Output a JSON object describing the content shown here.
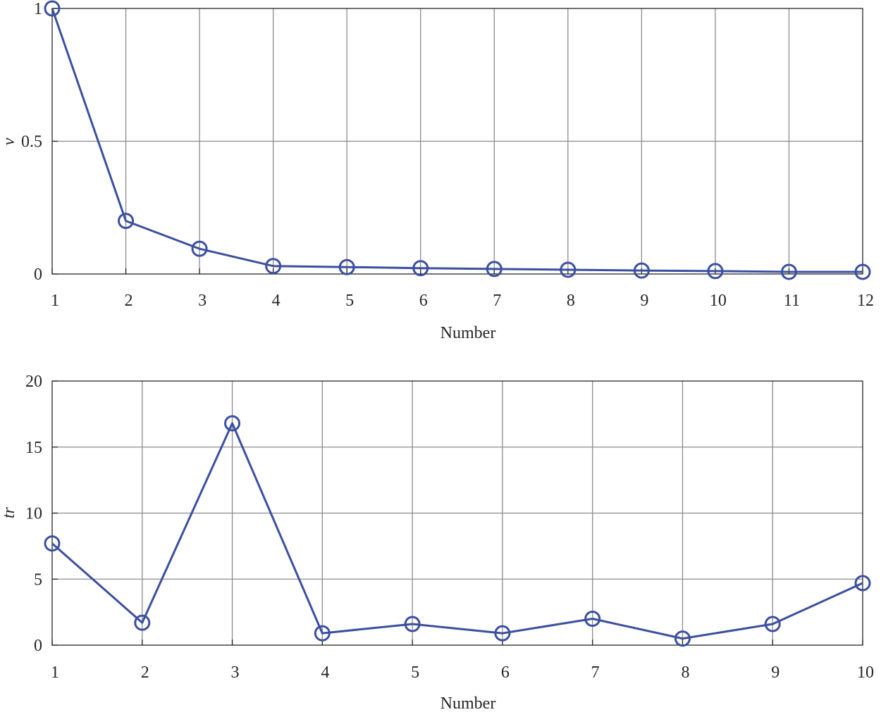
{
  "chart_data": [
    {
      "type": "line",
      "xlabel": "Number",
      "ylabel": "v",
      "x": [
        1,
        2,
        3,
        4,
        5,
        6,
        7,
        8,
        9,
        10,
        11,
        12
      ],
      "xticks": [
        "1",
        "2",
        "3",
        "4",
        "5",
        "6",
        "7",
        "8",
        "9",
        "10",
        "11",
        "12"
      ],
      "xlim": [
        1,
        12
      ],
      "ylim": [
        0,
        1
      ],
      "yticks": [
        "0",
        "0.5",
        "1"
      ],
      "ytick_values": [
        0,
        0.5,
        1
      ],
      "grid": true,
      "marker": "circle",
      "color": "#3b4fa0",
      "series": [
        {
          "values": [
            1.0,
            0.2,
            0.095,
            0.03,
            0.026,
            0.022,
            0.019,
            0.016,
            0.013,
            0.011,
            0.008,
            0.008
          ]
        }
      ]
    },
    {
      "type": "line",
      "xlabel": "Number",
      "ylabel": "tr",
      "x": [
        1,
        2,
        3,
        4,
        5,
        6,
        7,
        8,
        9,
        10
      ],
      "xticks": [
        "1",
        "2",
        "3",
        "4",
        "5",
        "6",
        "7",
        "8",
        "9",
        "10"
      ],
      "xlim": [
        1,
        10
      ],
      "ylim": [
        0,
        20
      ],
      "yticks": [
        "0",
        "5",
        "10",
        "15",
        "20"
      ],
      "ytick_values": [
        0,
        5,
        10,
        15,
        20
      ],
      "grid": true,
      "marker": "circle",
      "color": "#3b4fa0",
      "series": [
        {
          "values": [
            7.7,
            1.7,
            16.8,
            0.9,
            1.6,
            0.9,
            2.0,
            0.5,
            1.6,
            4.7
          ]
        }
      ]
    }
  ]
}
